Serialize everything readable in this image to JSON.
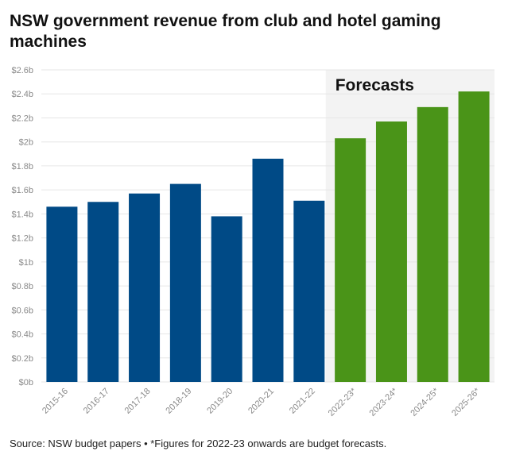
{
  "title": "NSW government revenue from club and hotel gaming machines",
  "source": "Source: NSW budget papers • *Figures for 2022-23 onwards are budget forecasts.",
  "chart_data": {
    "type": "bar",
    "title": "NSW government revenue from club and hotel gaming machines",
    "xlabel": "",
    "ylabel": "",
    "categories": [
      "2015-16",
      "2016-17",
      "2017-18",
      "2018-19",
      "2019-20",
      "2020-21",
      "2021-22",
      "2022-23*",
      "2023-24*",
      "2024-25*",
      "2025-26*"
    ],
    "values": [
      1.46,
      1.5,
      1.57,
      1.65,
      1.38,
      1.86,
      1.51,
      2.03,
      2.17,
      2.29,
      2.42
    ],
    "units": "$ billions",
    "ylim": [
      0,
      2.6
    ],
    "yticks": [
      0,
      0.2,
      0.4,
      0.6,
      0.8,
      1.0,
      1.2,
      1.4,
      1.6,
      1.8,
      2.0,
      2.2,
      2.4,
      2.6
    ],
    "ytick_labels": [
      "$0b",
      "$0.2b",
      "$0.4b",
      "$0.6b",
      "$0.8b",
      "$1b",
      "$1.2b",
      "$1.4b",
      "$1.6b",
      "$1.8b",
      "$2b",
      "$2.2b",
      "$2.4b",
      "$2.6b"
    ],
    "forecast_start_index": 7,
    "forecast_label": "Forecasts",
    "grid": true,
    "colors": {
      "actual": "#004a86",
      "forecast": "#4a9418",
      "forecast_band": "#f3f3f3",
      "grid": "#e6e6e6"
    }
  }
}
